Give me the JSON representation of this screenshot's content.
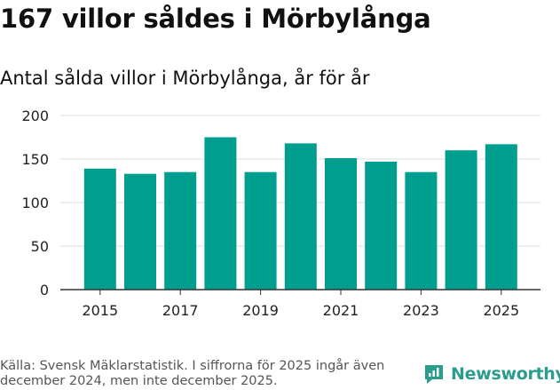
{
  "header": {
    "title": "167 villor såldes i Mörbylånga",
    "subtitle": "Antal sålda villor i Mörbylånga, år för år"
  },
  "chart_data": {
    "type": "bar",
    "title": "167 villor såldes i Mörbylånga",
    "subtitle": "Antal sålda villor i Mörbylånga, år för år",
    "xlabel": "",
    "ylabel": "",
    "categories": [
      "2015",
      "2016",
      "2017",
      "2018",
      "2019",
      "2020",
      "2021",
      "2022",
      "2023",
      "2024",
      "2025"
    ],
    "values": [
      139,
      133,
      135,
      175,
      135,
      168,
      151,
      147,
      135,
      160,
      167
    ],
    "x_tick_labels": [
      "2015",
      "2017",
      "2019",
      "2021",
      "2023",
      "2025"
    ],
    "y_ticks": [
      "0",
      "50",
      "100",
      "150",
      "200"
    ],
    "ylim": [
      0,
      200
    ],
    "grid": true,
    "bar_color": "#009e8f"
  },
  "footer": {
    "source": "Källa: Svensk Mäklarstatistik. I siffrorna för 2025 ingår även december 2024, men inte december 2025.",
    "brand": "Newsworthy",
    "brand_color": "#2a9d8f"
  }
}
